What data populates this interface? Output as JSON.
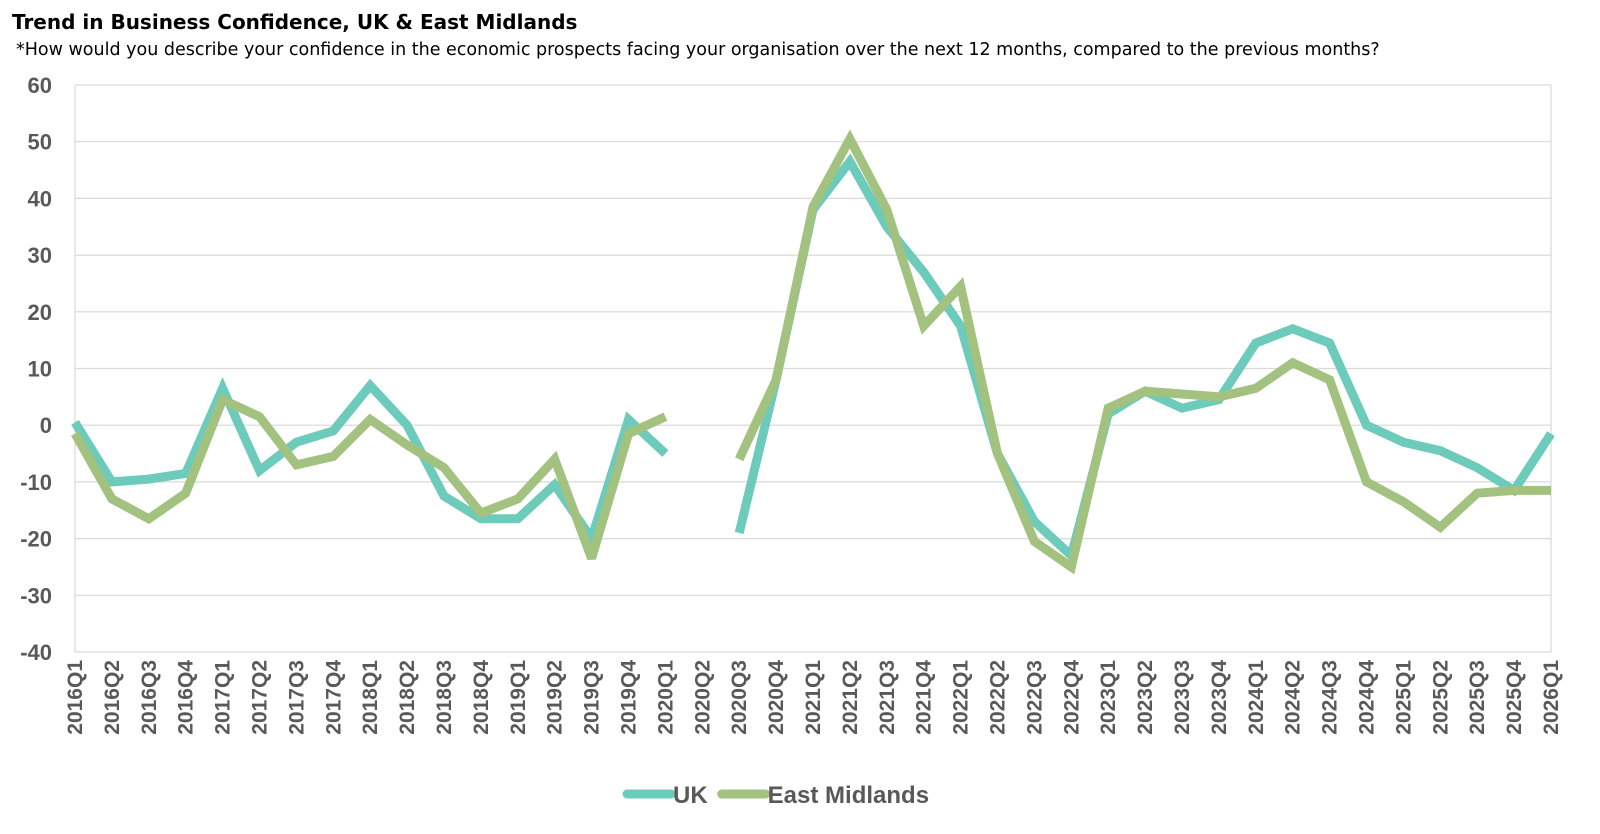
{
  "chart_data": {
    "type": "line",
    "title": "Trend in Business Confidence, UK & East Midlands",
    "subtitle": "*How would you describe your confidence in the economic prospects facing your organisation over the next 12 months, compared to the previous months?",
    "xlabel": "",
    "ylabel": "",
    "ylim": [
      -40,
      60
    ],
    "yticks": [
      60,
      50,
      40,
      30,
      20,
      10,
      0,
      -10,
      -20,
      -30,
      -40
    ],
    "grid": true,
    "legend": "bottom",
    "categories": [
      "2016Q1",
      "2016Q2",
      "2016Q3",
      "2016Q4",
      "2017Q1",
      "2017Q2",
      "2017Q3",
      "2017Q4",
      "2018Q1",
      "2018Q2",
      "2018Q3",
      "2018Q4",
      "2019Q1",
      "2019Q2",
      "2019Q3",
      "2019Q4",
      "2020Q1",
      "2020Q2",
      "2020Q3",
      "2020Q4",
      "2021Q1",
      "2021Q2",
      "2021Q3",
      "2021Q4",
      "2022Q1",
      "2022Q2",
      "2022Q3",
      "2022Q4",
      "2023Q1",
      "2023Q2",
      "2023Q3",
      "2023Q4",
      "2024Q1",
      "2024Q2",
      "2024Q3",
      "2024Q4",
      "2025Q1",
      "2025Q2",
      "2025Q3",
      "2025Q4",
      "2026Q1"
    ],
    "series": [
      {
        "name": "UK",
        "color": "#6ccbbb",
        "values": [
          0.5,
          -10,
          -9.5,
          -8.5,
          6.5,
          -8,
          -3,
          -1,
          7,
          0,
          -12.5,
          -16.5,
          -16.5,
          -10.5,
          -20,
          1,
          -5,
          null,
          -19,
          8,
          38,
          46.5,
          35,
          27,
          17.5,
          -5,
          -17,
          -23,
          2,
          6,
          3,
          4.5,
          14.5,
          17,
          14.5,
          0,
          -3,
          -4.5,
          -7.5,
          -11.5,
          -1.5
        ]
      },
      {
        "name": "East Midlands",
        "color": "#a3c27f",
        "values": [
          -1.5,
          -13,
          -16.5,
          -12,
          4.5,
          1.5,
          -7,
          -5.5,
          1,
          -3.5,
          -7.5,
          -15.5,
          -13,
          -6,
          -23.5,
          -1.5,
          1.5,
          null,
          -6,
          8,
          38.5,
          50.5,
          38,
          17.5,
          24.5,
          -5,
          -20.5,
          -25,
          3,
          6,
          5.5,
          5,
          6.5,
          11,
          8,
          -10,
          -13.5,
          -18,
          -12,
          -11.5,
          -11.5
        ]
      }
    ]
  }
}
